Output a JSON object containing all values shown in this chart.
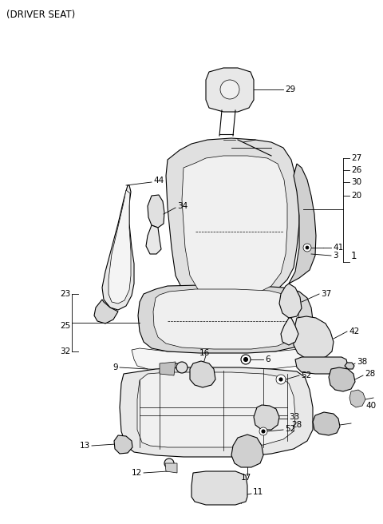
{
  "title": "(DRIVER SEAT)",
  "bg": "#ffffff",
  "lc": "#000000",
  "lc_gray": "#888888",
  "lc_lgray": "#aaaaaa",
  "fig_width": 4.8,
  "fig_height": 6.56,
  "dpi": 100,
  "fs": 7.5
}
